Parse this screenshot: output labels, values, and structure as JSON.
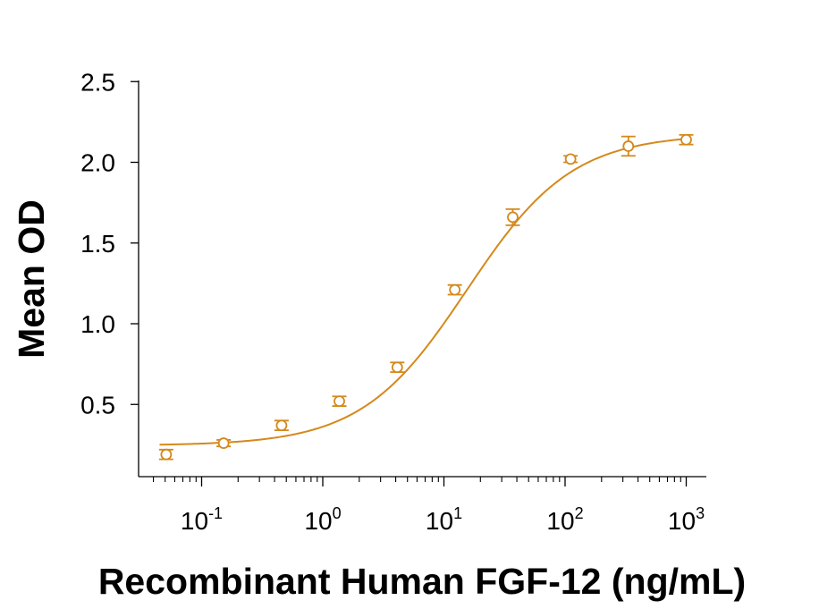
{
  "chart_data": {
    "type": "scatter",
    "title": "",
    "xlabel": "Recombinant Human FGF-12 (ng/mL)",
    "ylabel": "Mean OD",
    "x_scale": "log10",
    "xlim": [
      0.03,
      1300
    ],
    "ylim": [
      0.15,
      2.5
    ],
    "x_ticks": [
      {
        "base": "10",
        "exp": "-1",
        "value": 0.1
      },
      {
        "base": "10",
        "exp": "0",
        "value": 1
      },
      {
        "base": "10",
        "exp": "1",
        "value": 10
      },
      {
        "base": "10",
        "exp": "2",
        "value": 100
      },
      {
        "base": "10",
        "exp": "3",
        "value": 1000
      }
    ],
    "y_ticks": [
      {
        "label": "0.5",
        "value": 0.5
      },
      {
        "label": "1.0",
        "value": 1.0
      },
      {
        "label": "1.5",
        "value": 1.5
      },
      {
        "label": "2.0",
        "value": 2.0
      },
      {
        "label": "2.5",
        "value": 2.5
      }
    ],
    "series": [
      {
        "color": "#d4891c",
        "marker": "open-circle",
        "x": [
          0.051,
          0.152,
          0.457,
          1.37,
          4.12,
          12.3,
          37.0,
          111,
          333,
          1000
        ],
        "y": [
          0.19,
          0.26,
          0.37,
          0.52,
          0.73,
          1.21,
          1.66,
          2.02,
          2.1,
          2.14
        ],
        "y_err": [
          0.03,
          0.02,
          0.03,
          0.03,
          0.03,
          0.03,
          0.05,
          0.02,
          0.06,
          0.03
        ]
      }
    ],
    "fit_curve": {
      "model": "4PL",
      "bottom": 0.245,
      "top": 2.175,
      "ec50": 15.5,
      "hill": 1.0,
      "color": "#d4891c"
    },
    "grid": false,
    "legend": "none"
  }
}
